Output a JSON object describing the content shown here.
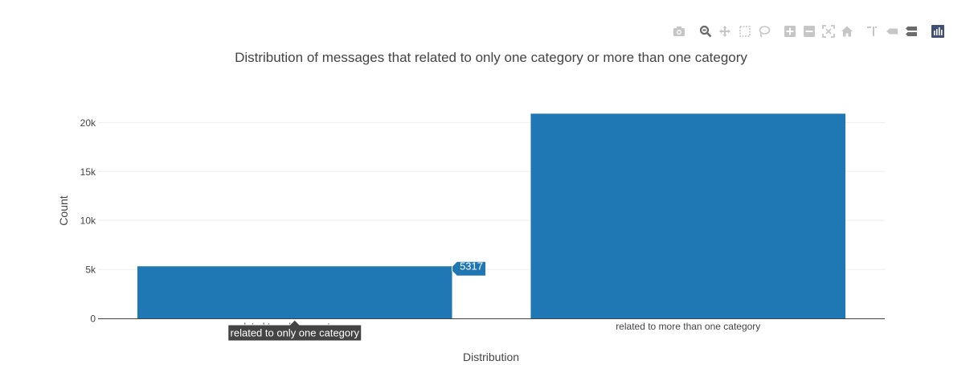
{
  "chart_data": {
    "type": "bar",
    "title": "Distribution of messages that related to only one category or more than one category",
    "xlabel": "Distribution",
    "ylabel": "Count",
    "categories": [
      "related to only one category",
      "related to more than one category"
    ],
    "values": [
      5317,
      20900
    ],
    "ylim": [
      0,
      22000
    ],
    "yticks": [
      0,
      5000,
      10000,
      15000,
      20000
    ],
    "ytick_labels": [
      "0",
      "5k",
      "10k",
      "15k",
      "20k"
    ],
    "grid": true,
    "bar_color": "#1f77b4",
    "hover": {
      "category_index": 0,
      "value_label": "5317",
      "category_label": "related to only one category"
    }
  },
  "modebar": {
    "buttons": [
      {
        "name": "camera-icon",
        "title": "Download plot as a png"
      },
      {
        "name": "zoom-icon",
        "title": "Zoom"
      },
      {
        "name": "pan-icon",
        "title": "Pan"
      },
      {
        "name": "box-select-icon",
        "title": "Box Select"
      },
      {
        "name": "lasso-select-icon",
        "title": "Lasso Select"
      },
      {
        "name": "zoom-in-icon",
        "title": "Zoom in"
      },
      {
        "name": "zoom-out-icon",
        "title": "Zoom out"
      },
      {
        "name": "autoscale-icon",
        "title": "Autoscale"
      },
      {
        "name": "home-icon",
        "title": "Reset axes"
      },
      {
        "name": "spike-lines-icon",
        "title": "Toggle Spike Lines"
      },
      {
        "name": "hover-closest-icon",
        "title": "Show closest data on hover"
      },
      {
        "name": "hover-compare-icon",
        "title": "Compare data on hover"
      },
      {
        "name": "plotly-logo-icon",
        "title": "Produced with Plotly"
      }
    ],
    "colors": {
      "inactive": "#c6c6c6",
      "active": "#6b6b6b",
      "logo": "#3f4f75"
    }
  }
}
